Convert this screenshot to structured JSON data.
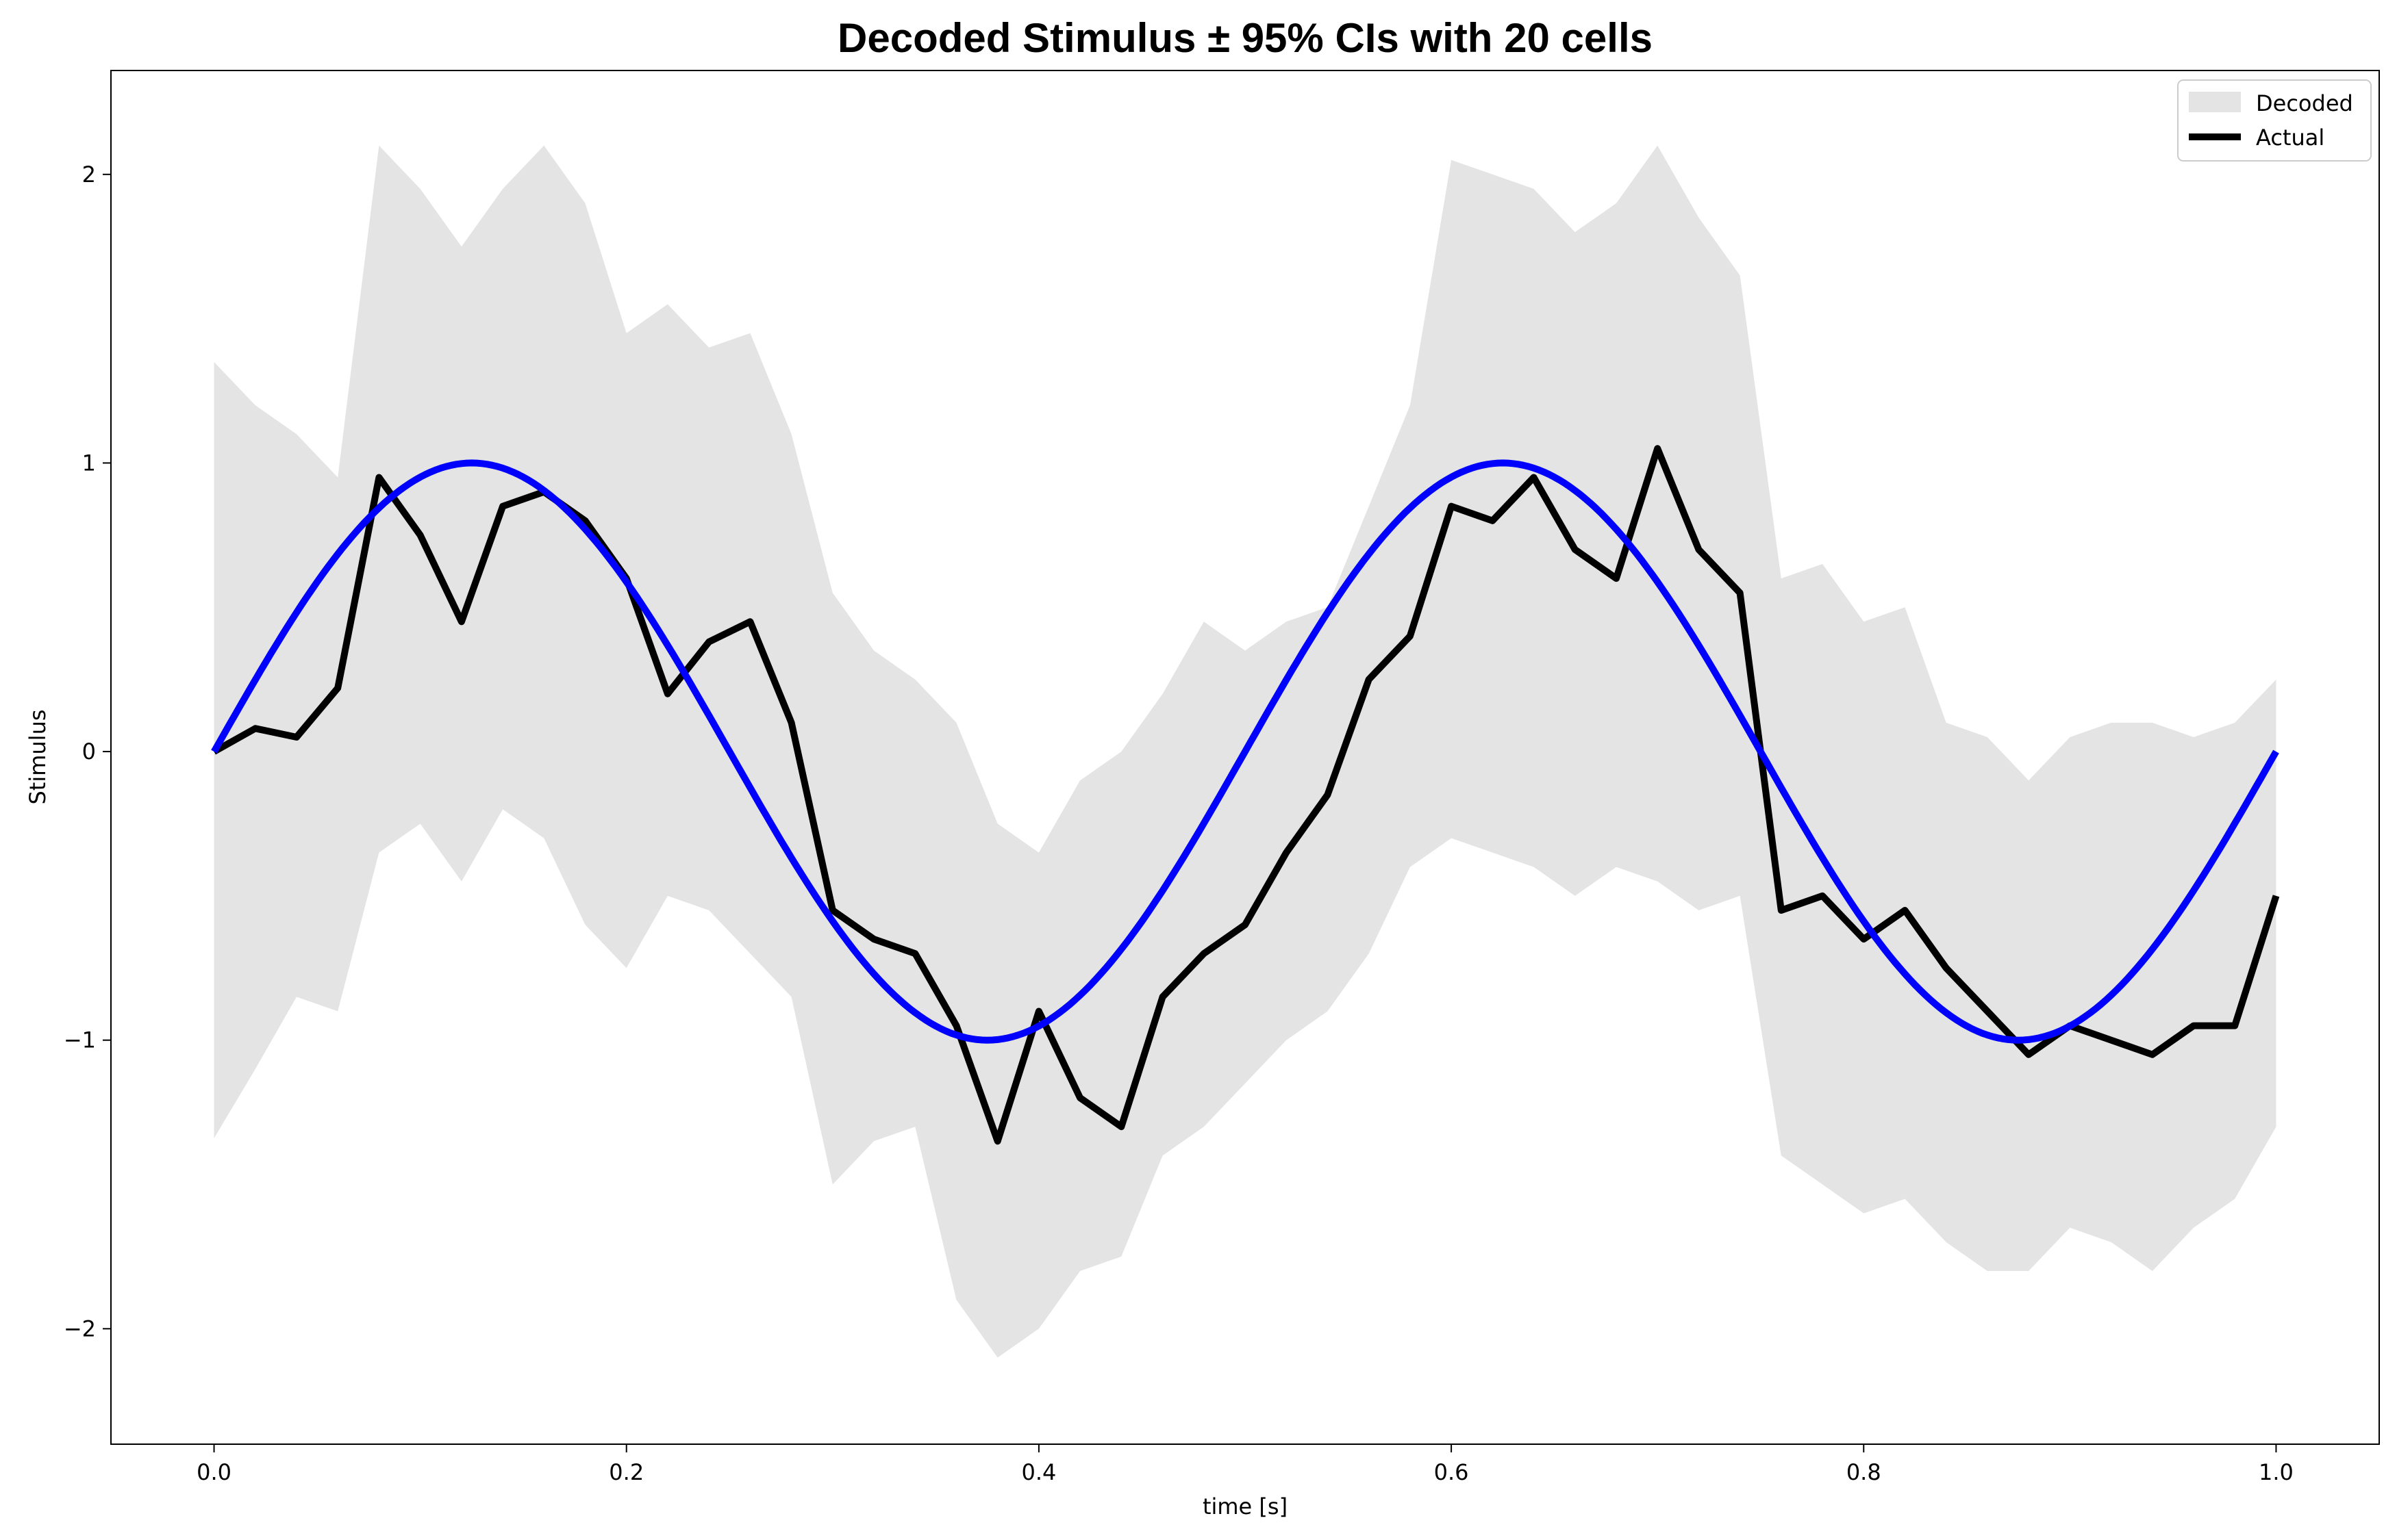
{
  "chart_data": {
    "type": "line",
    "title": "Decoded Stimulus ± 95% CIs with 20 cells",
    "xlabel": "time [s]",
    "ylabel": "Stimulus",
    "xlim": [
      -0.05,
      1.05
    ],
    "ylim": [
      -2.4,
      2.36
    ],
    "xticks": [
      0.0,
      0.2,
      0.4,
      0.6,
      0.8,
      1.0
    ],
    "xtick_labels": [
      "0.0",
      "0.2",
      "0.4",
      "0.6",
      "0.8",
      "1.0"
    ],
    "yticks": [
      -2,
      -1,
      0,
      1,
      2
    ],
    "ytick_labels": [
      "−2",
      "−1",
      "0",
      "1",
      "2"
    ],
    "grid": false,
    "legend": {
      "position": "top-right",
      "entries": [
        {
          "label": "Decoded",
          "style": "band",
          "color": "#e4e4e4"
        },
        {
          "label": "Actual",
          "style": "line",
          "color": "#000000"
        }
      ]
    },
    "x": [
      0.0,
      0.02,
      0.04,
      0.06,
      0.08,
      0.1,
      0.12,
      0.14,
      0.16,
      0.18,
      0.2,
      0.22,
      0.24,
      0.26,
      0.28,
      0.3,
      0.32,
      0.34,
      0.36,
      0.38,
      0.4,
      0.42,
      0.44,
      0.46,
      0.48,
      0.5,
      0.52,
      0.54,
      0.56,
      0.58,
      0.6,
      0.62,
      0.64,
      0.66,
      0.68,
      0.7,
      0.72,
      0.74,
      0.76,
      0.78,
      0.8,
      0.82,
      0.84,
      0.86,
      0.88,
      0.9,
      0.92,
      0.94,
      0.96,
      0.98,
      1.0
    ],
    "series": [
      {
        "name": "Decoded",
        "style": "band",
        "color": "#e4e4e4",
        "lower": [
          -1.34,
          -1.1,
          -0.85,
          -0.9,
          -0.35,
          -0.25,
          -0.45,
          -0.2,
          -0.3,
          -0.6,
          -0.75,
          -0.5,
          -0.55,
          -0.7,
          -0.85,
          -1.5,
          -1.35,
          -1.3,
          -1.9,
          -2.1,
          -2.0,
          -1.8,
          -1.75,
          -1.4,
          -1.3,
          -1.15,
          -1.0,
          -0.9,
          -0.7,
          -0.4,
          -0.3,
          -0.35,
          -0.4,
          -0.5,
          -0.4,
          -0.45,
          -0.55,
          -0.5,
          -1.4,
          -1.5,
          -1.6,
          -1.55,
          -1.7,
          -1.8,
          -1.8,
          -1.65,
          -1.7,
          -1.8,
          -1.65,
          -1.55,
          -1.3
        ],
        "upper": [
          1.35,
          1.2,
          1.1,
          0.95,
          2.1,
          1.95,
          1.75,
          1.95,
          2.1,
          1.9,
          1.45,
          1.55,
          1.4,
          1.45,
          1.1,
          0.55,
          0.35,
          0.25,
          0.1,
          -0.25,
          -0.35,
          -0.1,
          0.0,
          0.2,
          0.45,
          0.35,
          0.45,
          0.5,
          0.85,
          1.2,
          2.05,
          2.0,
          1.95,
          1.8,
          1.9,
          2.1,
          1.85,
          1.65,
          0.6,
          0.65,
          0.45,
          0.5,
          0.1,
          0.05,
          -0.1,
          0.05,
          0.1,
          0.1,
          0.05,
          0.1,
          0.25
        ]
      },
      {
        "name": "Actual",
        "style": "line",
        "color": "#000000",
        "values": [
          0.0,
          0.08,
          0.05,
          0.22,
          0.95,
          0.75,
          0.45,
          0.85,
          0.9,
          0.8,
          0.6,
          0.2,
          0.38,
          0.45,
          0.1,
          -0.55,
          -0.65,
          -0.7,
          -0.95,
          -1.35,
          -0.9,
          -1.2,
          -1.3,
          -0.85,
          -0.7,
          -0.6,
          -0.35,
          -0.15,
          0.25,
          0.4,
          0.85,
          0.8,
          0.95,
          0.7,
          0.6,
          1.05,
          0.7,
          0.55,
          -0.55,
          -0.5,
          -0.65,
          -0.55,
          -0.75,
          -0.9,
          -1.05,
          -0.95,
          -1.0,
          -1.05,
          -0.95,
          -0.95,
          -0.5
        ]
      },
      {
        "name": "",
        "style": "line",
        "color": "#0000ff",
        "function": "sin(2*pi*2*t)"
      }
    ]
  }
}
